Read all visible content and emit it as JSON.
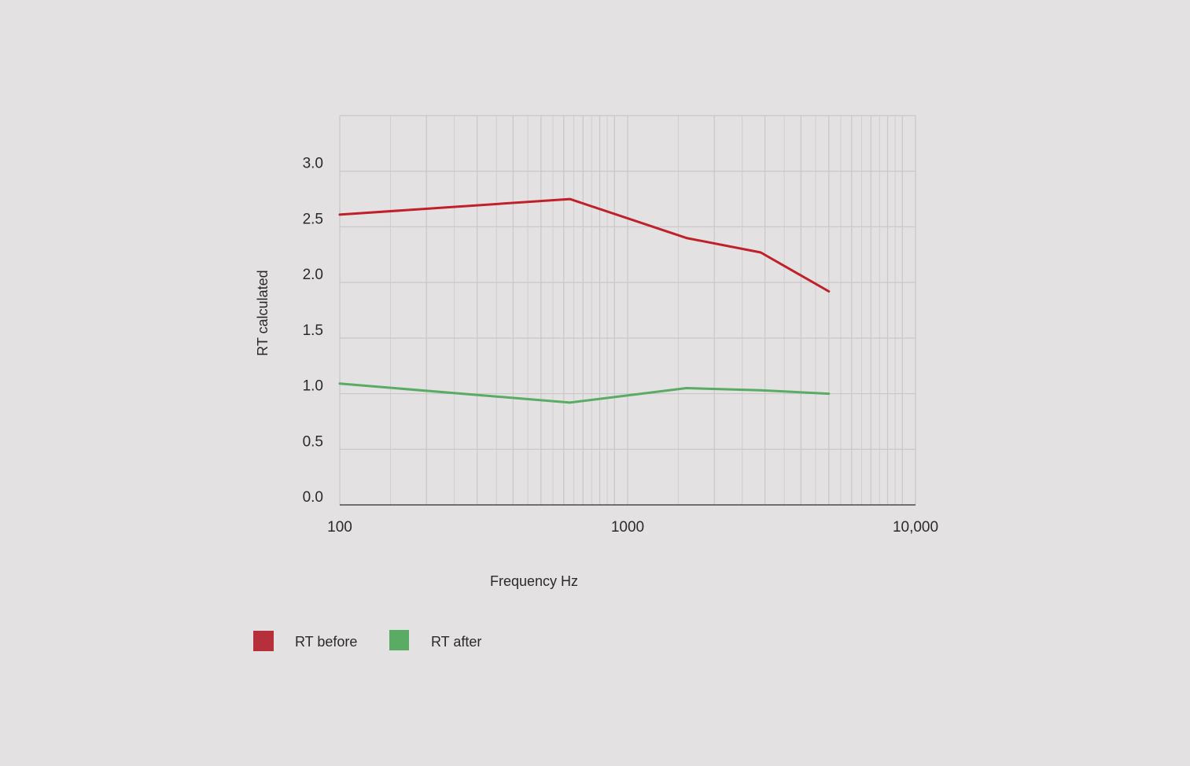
{
  "chart_data": {
    "type": "line",
    "xscale": "log",
    "xlim": [
      100,
      10000
    ],
    "ylim": [
      0,
      3.5
    ],
    "xlabel": "Frequency Hz",
    "ylabel": "RT calculated",
    "x_ticks": [
      {
        "value": 100,
        "label": "100"
      },
      {
        "value": 1000,
        "label": "1000"
      },
      {
        "value": 10000,
        "label": "10,000"
      }
    ],
    "y_ticks": [
      {
        "value": 0,
        "label": "0.0"
      },
      {
        "value": 0.5,
        "label": "0.5"
      },
      {
        "value": 1.0,
        "label": "1.0"
      },
      {
        "value": 1.5,
        "label": "1.5"
      },
      {
        "value": 2.0,
        "label": "2.0"
      },
      {
        "value": 2.5,
        "label": "2.5"
      },
      {
        "value": 3.0,
        "label": "3.0"
      }
    ],
    "grid": true,
    "legend_position": "bottom-left",
    "series": [
      {
        "name": "RT before",
        "color": "#c0202a",
        "legend_color": "#b5303a",
        "x": [
          100,
          630,
          1600,
          2900,
          5000
        ],
        "y": [
          2.61,
          2.75,
          2.4,
          2.27,
          1.92
        ]
      },
      {
        "name": "RT after",
        "color": "#5aab63",
        "legend_color": "#5aab63",
        "x": [
          100,
          630,
          1600,
          2900,
          5000
        ],
        "y": [
          1.09,
          0.92,
          1.05,
          1.03,
          1.0
        ]
      }
    ]
  }
}
